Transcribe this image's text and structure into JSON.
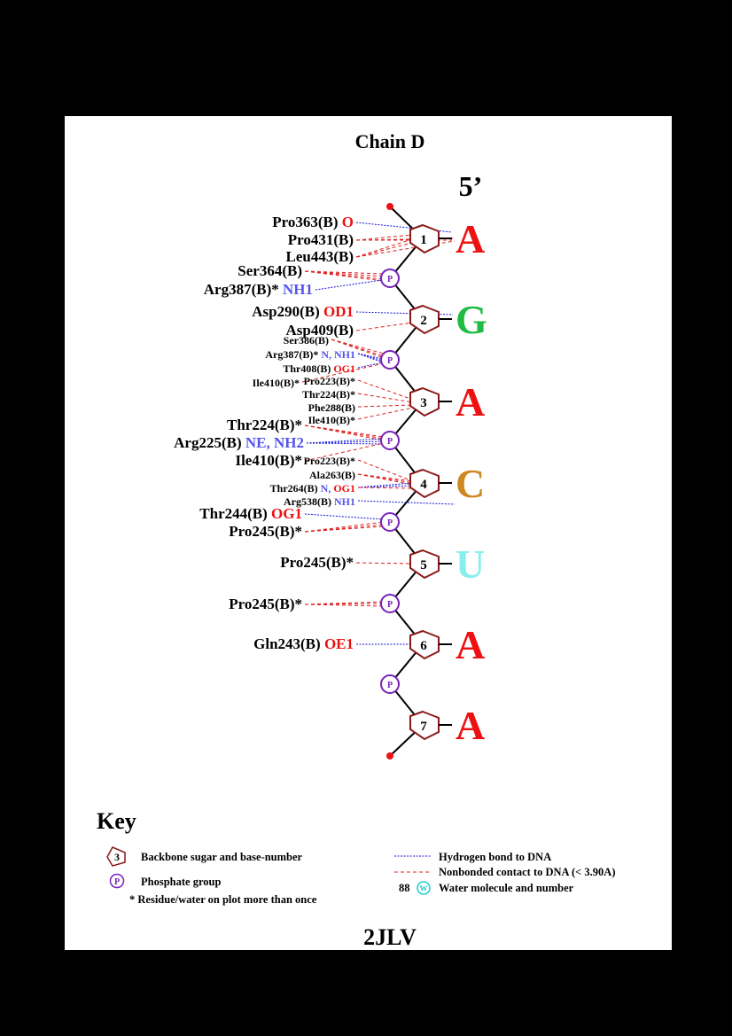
{
  "title": "Chain D",
  "end_label": "5’",
  "pdb_id": "2JLV",
  "colors": {
    "A": "#ee1111",
    "G": "#22bb44",
    "C": "#cc8822",
    "U": "#88eeee",
    "hbond": "#1414d8",
    "nonbond": "#e02020",
    "phosphate": "#7722bb",
    "sugar": "#8b1a1a",
    "atom_red": "#ee1111",
    "atom_blue": "#5555ee",
    "water": "#22cccc"
  },
  "nucleotides": [
    {
      "num": "1",
      "base": "A"
    },
    {
      "num": "2",
      "base": "G"
    },
    {
      "num": "3",
      "base": "A"
    },
    {
      "num": "4",
      "base": "C"
    },
    {
      "num": "5",
      "base": "U"
    },
    {
      "num": "6",
      "base": "A"
    },
    {
      "num": "7",
      "base": "A"
    }
  ],
  "phosphate_symbol": "P",
  "residue_labels": [
    {
      "text": "Pro363(B)",
      "atom": "O",
      "atom_color": "red"
    },
    {
      "text": "Pro431(B)"
    },
    {
      "text": "Leu443(B)"
    },
    {
      "text": "Ser364(B)"
    },
    {
      "text": "Arg387(B)*",
      "atom": "NH1",
      "atom_color": "blue"
    },
    {
      "text": "Asp290(B)",
      "atom": "OD1",
      "atom_color": "red"
    },
    {
      "text": "Asp409(B)"
    },
    {
      "text": "Ser386(B)"
    },
    {
      "text": "Arg387(B)*",
      "atom_parts": [
        {
          "t": "N,",
          "c": "blue"
        },
        {
          "t": "NH1",
          "c": "blue"
        }
      ]
    },
    {
      "text": "Thr408(B)",
      "atom": "OG1",
      "atom_color": "red"
    },
    {
      "text": "Ile410(B)*"
    },
    {
      "text": "Pro223(B)*"
    },
    {
      "text": "Thr224(B)*"
    },
    {
      "text": "Phe288(B)"
    },
    {
      "text": "Ile410(B)*"
    },
    {
      "text": "Thr224(B)*"
    },
    {
      "text": "Arg225(B)",
      "atom": "NE, NH2",
      "atom_color": "blue"
    },
    {
      "text": "Ile410(B)*"
    },
    {
      "text": "Pro223(B)*"
    },
    {
      "text": "Ala263(B)"
    },
    {
      "text": "Thr264(B)",
      "atom_parts": [
        {
          "t": "N,",
          "c": "blue"
        },
        {
          "t": "OG1",
          "c": "red"
        }
      ]
    },
    {
      "text": "Arg538(B)",
      "atom": "NH1",
      "atom_color": "blue"
    },
    {
      "text": "Thr244(B)",
      "atom": "OG1",
      "atom_color": "red"
    },
    {
      "text": "Pro245(B)*"
    },
    {
      "text": "Pro245(B)*"
    },
    {
      "text": "Pro245(B)*"
    },
    {
      "text": "Gln243(B)",
      "atom": "OE1",
      "atom_color": "red"
    }
  ],
  "key": {
    "title": "Key",
    "sugar_example_number": "3",
    "sugar_desc": "Backbone sugar and base-number",
    "phosphate_desc": "Phosphate group",
    "star_desc": "* Residue/water on plot more than once",
    "hbond_desc": "Hydrogen bond to DNA",
    "nonbond_desc": "Nonbonded contact to DNA (< 3.90A)",
    "water_example_number": "88",
    "water_symbol": "W",
    "water_desc": "Water molecule and number"
  }
}
